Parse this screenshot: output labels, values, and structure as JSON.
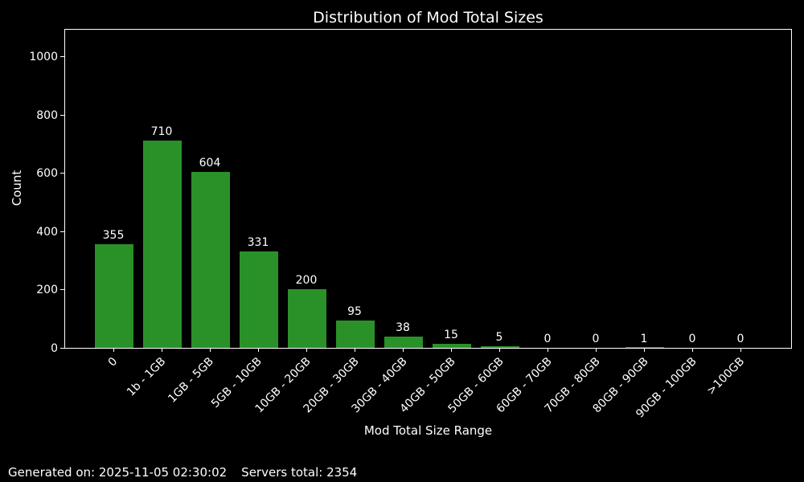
{
  "chart_data": {
    "type": "bar",
    "title": "Distribution of Mod Total Sizes",
    "xlabel": "Mod Total Size Range",
    "ylabel": "Count",
    "categories": [
      "0",
      "1b - 1GB",
      "1GB - 5GB",
      "5GB - 10GB",
      "10GB - 20GB",
      "20GB - 30GB",
      "30GB - 40GB",
      "40GB - 50GB",
      "50GB - 60GB",
      "60GB - 70GB",
      "70GB - 80GB",
      "80GB - 90GB",
      "90GB - 100GB",
      ">100GB"
    ],
    "values": [
      355,
      710,
      604,
      331,
      200,
      95,
      38,
      15,
      5,
      0,
      0,
      1,
      0,
      0
    ],
    "yticks": [
      0,
      200,
      400,
      600,
      800,
      1000
    ],
    "ylim": [
      0,
      1097
    ],
    "grid": false,
    "legend": null,
    "bar_labels_shown": true,
    "bar_color": "#2a9128",
    "background_color": "#000000",
    "text_color": "#ffffff",
    "axis_color": "#ffffff"
  },
  "footer": {
    "generated": "Generated on: 2025-11-05 02:30:02",
    "servers_total": "Servers total: 2354"
  }
}
